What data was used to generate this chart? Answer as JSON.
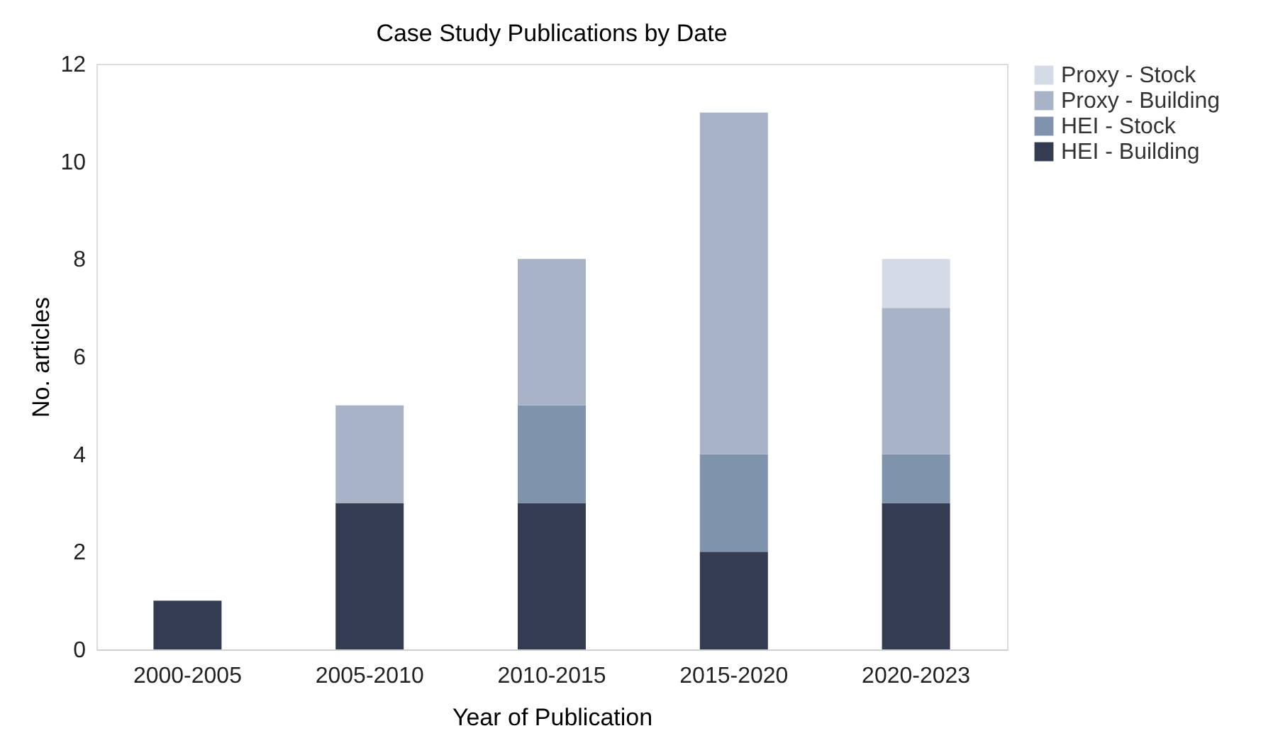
{
  "chart_data": {
    "type": "bar",
    "stacked": true,
    "title": "Case Study Publications by Date",
    "xlabel": "Year of Publication",
    "ylabel": "No. articles",
    "categories": [
      "2000-2005",
      "2005-2010",
      "2010-2015",
      "2015-2020",
      "2020-2023"
    ],
    "series": [
      {
        "name": "HEI - Building",
        "color": "#333c50",
        "values": [
          1,
          3,
          3,
          2,
          3
        ]
      },
      {
        "name": "HEI - Stock",
        "color": "#7f93ad",
        "values": [
          0,
          0,
          2,
          2,
          1
        ]
      },
      {
        "name": "Proxy - Building",
        "color": "#a9b3c8",
        "values": [
          0,
          2,
          3,
          7,
          3
        ]
      },
      {
        "name": "Proxy - Stock",
        "color": "#d4dbe6",
        "values": [
          0,
          0,
          0,
          0,
          1
        ]
      }
    ],
    "ylim": [
      0,
      12
    ],
    "yticks": [
      0,
      2,
      4,
      6,
      8,
      10,
      12
    ],
    "grid": false,
    "legend": "right"
  }
}
